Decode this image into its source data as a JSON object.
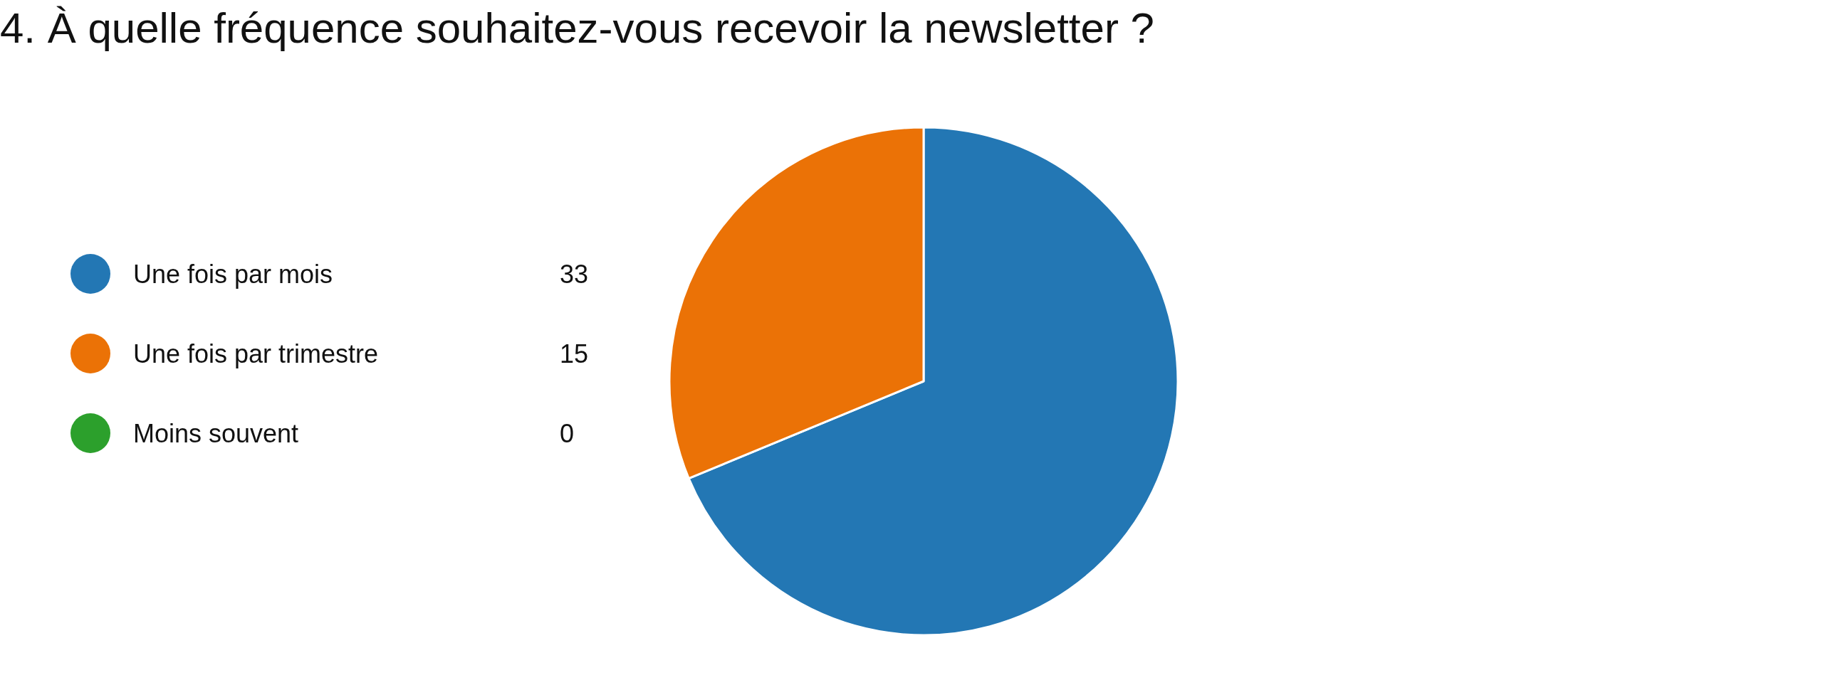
{
  "chart_data": {
    "type": "pie",
    "title": "4. À quelle fréquence souhaitez-vous recevoir la newsletter ?",
    "categories": [
      "Une fois par mois",
      "Une fois par trimestre",
      "Moins souvent"
    ],
    "values": [
      33,
      15,
      0
    ],
    "value_labels": [
      "33",
      "15",
      "0"
    ],
    "colors": [
      "#2377b4",
      "#eb7206",
      "#2ca02c"
    ],
    "legend": "left"
  }
}
